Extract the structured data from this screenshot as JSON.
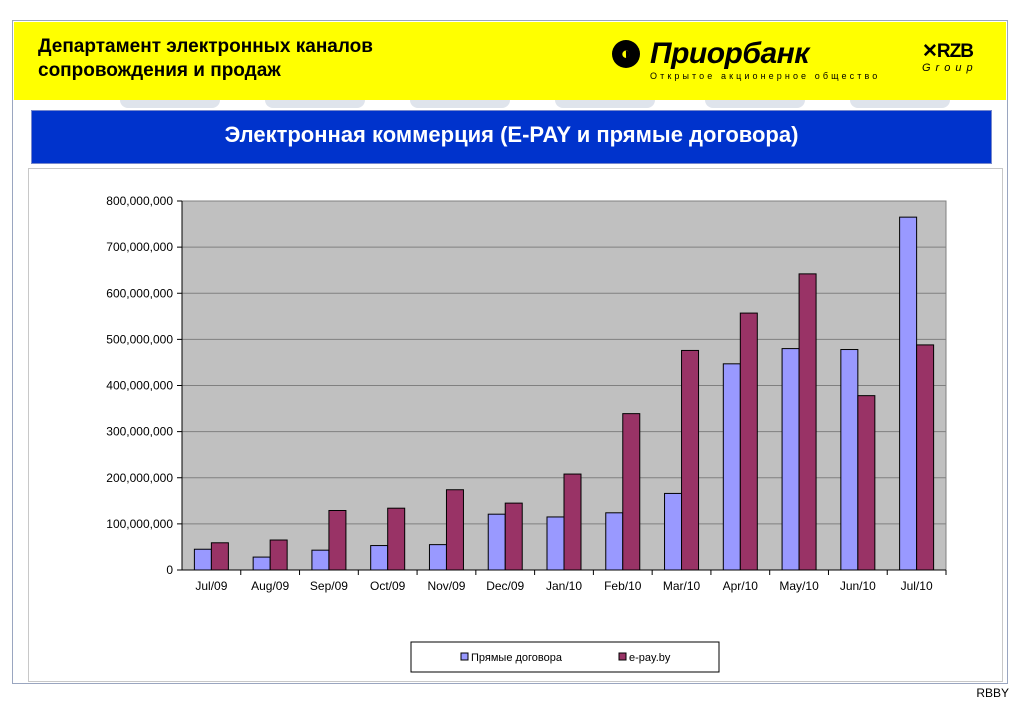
{
  "header": {
    "department_line1": "Департамент электронных каналов",
    "department_line2": "сопровождения и продаж",
    "brand_name": "Приорбанк",
    "brand_subtitle": "Открытое акционерное общество",
    "group_name": "RZB",
    "group_label": "Group"
  },
  "slide_title": "Электронная коммерция (E-PAY и прямые договора)",
  "footer_text": "RBBY",
  "colors": {
    "header_bg": "#ffff00",
    "title_bg": "#0033cc",
    "series_1": "#9999ff",
    "series_2": "#993366",
    "plot_bg": "#c0c0c0"
  },
  "chart_data": {
    "type": "bar",
    "categories": [
      "Jul/09",
      "Aug/09",
      "Sep/09",
      "Oct/09",
      "Nov/09",
      "Dec/09",
      "Jan/10",
      "Feb/10",
      "Mar/10",
      "Apr/10",
      "May/10",
      "Jun/10",
      "Jul/10"
    ],
    "series": [
      {
        "name": "Прямые договора",
        "values": [
          45000000,
          28000000,
          43000000,
          53000000,
          55000000,
          121000000,
          115000000,
          124000000,
          166000000,
          447000000,
          480000000,
          478000000,
          765000000
        ]
      },
      {
        "name": "e-pay.by",
        "values": [
          59000000,
          65000000,
          129000000,
          134000000,
          174000000,
          145000000,
          208000000,
          339000000,
          476000000,
          557000000,
          642000000,
          378000000,
          488000000
        ]
      }
    ],
    "y_ticks": [
      "0",
      "100,000,000",
      "200,000,000",
      "300,000,000",
      "400,000,000",
      "500,000,000",
      "600,000,000",
      "700,000,000",
      "800,000,000"
    ],
    "ylim": [
      0,
      800000000
    ],
    "grid": true,
    "legend_position": "bottom"
  }
}
